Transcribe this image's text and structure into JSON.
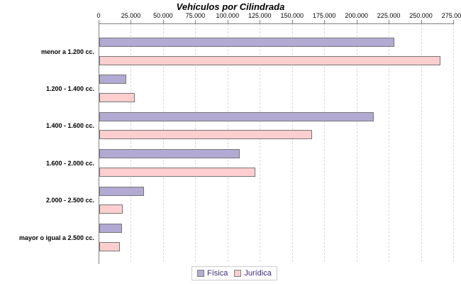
{
  "chart_data": {
    "type": "bar",
    "orientation": "horizontal",
    "title": "Vehículos por Cilindrada",
    "categories": [
      "menor a 1.200 cc.",
      "1.200 - 1.400 cc.",
      "1.400 - 1.600 cc.",
      "1.600 - 2.000 cc.",
      "2.000 - 2.500 cc.",
      "mayor o igual a 2.500 cc."
    ],
    "series": [
      {
        "name": "Física",
        "color": "#b2aad3",
        "values": [
          229000,
          21000,
          213000,
          109000,
          34500,
          17500
        ]
      },
      {
        "name": "Jurídica",
        "color": "#fccece",
        "values": [
          264500,
          27500,
          165000,
          121000,
          18000,
          16000
        ]
      }
    ],
    "xlim": [
      0,
      275000
    ],
    "x_tick_step": 25000,
    "x_tick_labels": [
      "0",
      "25.000",
      "50.000",
      "75.000",
      "100.000",
      "125.000",
      "150.000",
      "175.000",
      "200.000",
      "225.000",
      "250.000",
      "275.000"
    ],
    "grid": true,
    "axis_position": "top",
    "legend_position": "bottom"
  },
  "colors": {
    "axis": "#808080",
    "grid": "#d8d8d8",
    "bar_border": "#777777",
    "legend_border": "#cccccc",
    "legend_text": "#3d2b7d",
    "background": "#ffffff"
  }
}
